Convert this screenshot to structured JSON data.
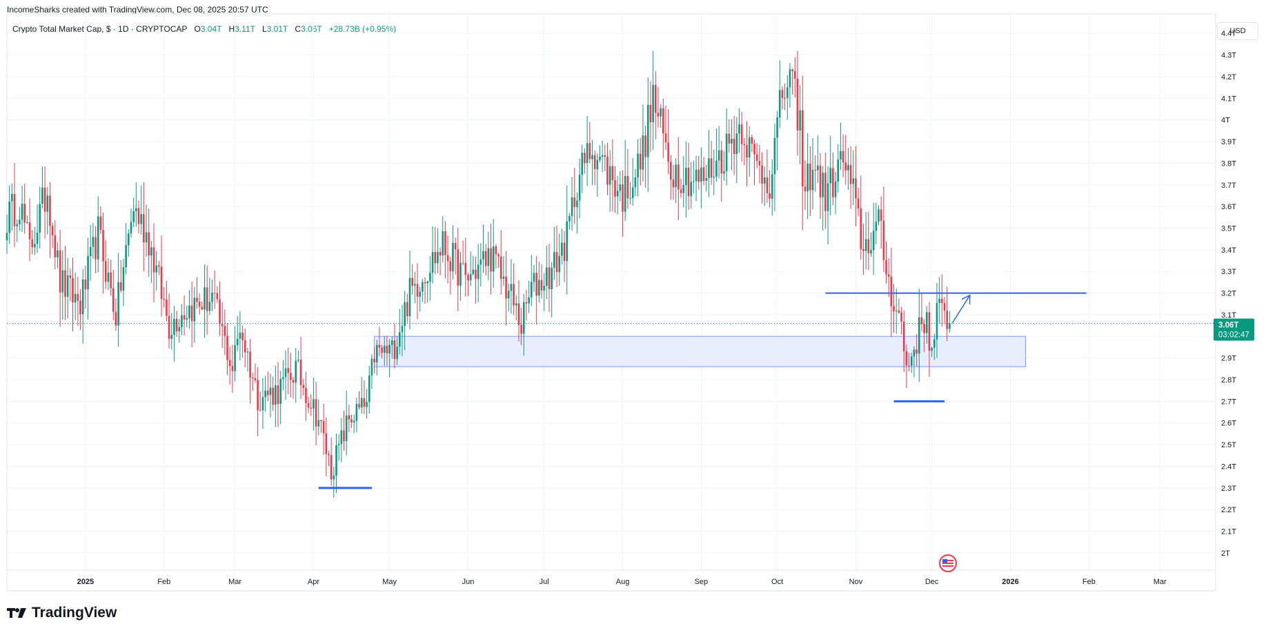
{
  "header": {
    "attribution": "IncomeSharks created with TradingView.com, Dec 08, 2025 20:57 UTC"
  },
  "symbol": {
    "name": "Crypto Total Market Cap, $ · 1D · CRYPTOCAP",
    "o_label": "O",
    "o_value": "3.04T",
    "h_label": "H",
    "h_value": "3.11T",
    "l_label": "L",
    "l_value": "3.01T",
    "c_label": "C",
    "c_value": "3.06T",
    "change": "+28.73B (+0.95%)"
  },
  "currency_button": "USD",
  "price_tag": {
    "price": "3.06T",
    "countdown": "03:02:47"
  },
  "logo": {
    "text": "TradingView",
    "icon": "tradingview-logo-icon"
  },
  "colors": {
    "up": "#089981",
    "down": "#f23645",
    "drawing": "#2962ff",
    "zone_fill": "#e8eefe"
  },
  "chart_data": {
    "type": "candlestick",
    "title": "Crypto Total Market Cap, $ · 1D · CRYPTOCAP",
    "ylabel": "USD",
    "ylim": [
      1.92,
      4.49
    ],
    "y_ticks": [
      "4.4T",
      "4.3T",
      "4.2T",
      "4.1T",
      "4T",
      "3.9T",
      "3.8T",
      "3.7T",
      "3.6T",
      "3.5T",
      "3.4T",
      "3.3T",
      "3.2T",
      "3.1T",
      "3T",
      "2.9T",
      "2.8T",
      "2.7T",
      "2.6T",
      "2.5T",
      "2.4T",
      "2.3T",
      "2.2T",
      "2.1T",
      "2T"
    ],
    "y_tick_values": [
      4.4,
      4.3,
      4.2,
      4.1,
      4.0,
      3.9,
      3.8,
      3.7,
      3.6,
      3.5,
      3.4,
      3.3,
      3.2,
      3.1,
      3.0,
      2.9,
      2.8,
      2.7,
      2.6,
      2.5,
      2.4,
      2.3,
      2.2,
      2.1,
      2.0
    ],
    "x_ticks": [
      "2025",
      "Feb",
      "Mar",
      "Apr",
      "May",
      "Jun",
      "Jul",
      "Aug",
      "Sep",
      "Oct",
      "Nov",
      "Dec",
      "2026",
      "Feb",
      "Mar"
    ],
    "x_tick_dates": [
      "2025-01-01",
      "2025-02-01",
      "2025-03-01",
      "2025-04-01",
      "2025-05-01",
      "2025-06-01",
      "2025-07-01",
      "2025-08-01",
      "2025-09-01",
      "2025-10-01",
      "2025-11-01",
      "2025-12-01",
      "2026-01-01",
      "2026-02-01",
      "2026-03-01"
    ],
    "x_range": [
      "2024-12-01",
      "2026-03-23"
    ],
    "grid": true,
    "last_close": 3.06,
    "price_path": [
      [
        "2024-12-01",
        3.55
      ],
      [
        "2024-12-06",
        3.62
      ],
      [
        "2024-12-10",
        3.4
      ],
      [
        "2024-12-17",
        3.68
      ],
      [
        "2024-12-22",
        3.25
      ],
      [
        "2024-12-30",
        3.15
      ],
      [
        "2025-01-06",
        3.48
      ],
      [
        "2025-01-13",
        3.1
      ],
      [
        "2025-01-20",
        3.6
      ],
      [
        "2025-01-26",
        3.45
      ],
      [
        "2025-02-03",
        3.05
      ],
      [
        "2025-02-09",
        3.12
      ],
      [
        "2025-02-20",
        3.18
      ],
      [
        "2025-02-28",
        2.85
      ],
      [
        "2025-03-03",
        3.05
      ],
      [
        "2025-03-10",
        2.72
      ],
      [
        "2025-03-18",
        2.75
      ],
      [
        "2025-03-25",
        2.85
      ],
      [
        "2025-04-03",
        2.62
      ],
      [
        "2025-04-08",
        2.38
      ],
      [
        "2025-04-15",
        2.62
      ],
      [
        "2025-04-22",
        2.68
      ],
      [
        "2025-04-25",
        2.92
      ],
      [
        "2025-05-02",
        2.93
      ],
      [
        "2025-05-09",
        3.2
      ],
      [
        "2025-05-22",
        3.42
      ],
      [
        "2025-05-31",
        3.26
      ],
      [
        "2025-06-10",
        3.38
      ],
      [
        "2025-06-18",
        3.18
      ],
      [
        "2025-06-22",
        3.05
      ],
      [
        "2025-06-26",
        3.22
      ],
      [
        "2025-07-04",
        3.3
      ],
      [
        "2025-07-10",
        3.45
      ],
      [
        "2025-07-14",
        3.72
      ],
      [
        "2025-07-20",
        3.88
      ],
      [
        "2025-08-01",
        3.65
      ],
      [
        "2025-08-08",
        3.8
      ],
      [
        "2025-08-13",
        4.1
      ],
      [
        "2025-08-20",
        3.78
      ],
      [
        "2025-08-28",
        3.73
      ],
      [
        "2025-09-01",
        3.72
      ],
      [
        "2025-09-10",
        3.85
      ],
      [
        "2025-09-17",
        3.98
      ],
      [
        "2025-09-22",
        3.8
      ],
      [
        "2025-09-28",
        3.72
      ],
      [
        "2025-10-03",
        4.12
      ],
      [
        "2025-10-06",
        4.18
      ],
      [
        "2025-10-10",
        4.0
      ],
      [
        "2025-10-11",
        3.65
      ],
      [
        "2025-10-15",
        3.8
      ],
      [
        "2025-10-20",
        3.65
      ],
      [
        "2025-10-27",
        3.82
      ],
      [
        "2025-10-31",
        3.65
      ],
      [
        "2025-11-04",
        3.4
      ],
      [
        "2025-11-10",
        3.52
      ],
      [
        "2025-11-14",
        3.25
      ],
      [
        "2025-11-19",
        3.05
      ],
      [
        "2025-11-21",
        2.85
      ],
      [
        "2025-11-26",
        3.02
      ],
      [
        "2025-11-29",
        3.1
      ],
      [
        "2025-12-01",
        2.9
      ],
      [
        "2025-12-03",
        3.12
      ],
      [
        "2025-12-08",
        3.06
      ]
    ],
    "annotations": [
      {
        "type": "hline",
        "label": "resistance",
        "price": 3.2,
        "from": "2025-10-20",
        "to": "2026-01-31"
      },
      {
        "type": "hline",
        "label": "low-mark",
        "price": 2.3,
        "from": "2025-04-03",
        "to": "2025-04-24"
      },
      {
        "type": "hline",
        "label": "low-mark",
        "price": 2.7,
        "from": "2025-11-16",
        "to": "2025-12-06"
      },
      {
        "type": "zone",
        "label": "support-zone",
        "price_from": 2.86,
        "price_to": 3.0,
        "from": "2025-04-25",
        "to": "2026-01-07"
      },
      {
        "type": "arrow",
        "label": "projection",
        "from_date": "2025-12-09",
        "from_price": 3.06,
        "to_date": "2025-12-16",
        "to_price": 3.19
      }
    ]
  }
}
